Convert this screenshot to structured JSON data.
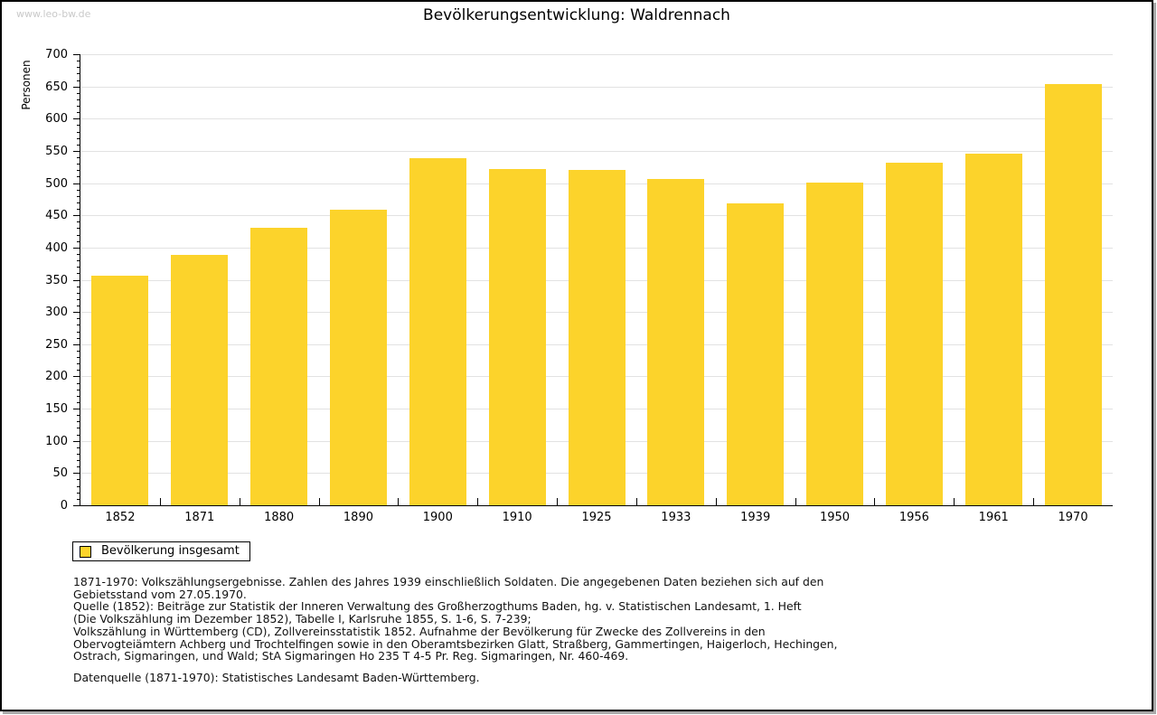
{
  "page": {
    "watermark": "www.leo-bw.de",
    "title": "Bevölkerungsentwicklung: Waldrennach"
  },
  "chart_data": {
    "type": "bar",
    "title": "Bevölkerungsentwicklung: Waldrennach",
    "ylabel": "Personen",
    "xlabel": "",
    "categories": [
      "1852",
      "1871",
      "1880",
      "1890",
      "1900",
      "1910",
      "1925",
      "1933",
      "1939",
      "1950",
      "1956",
      "1961",
      "1970"
    ],
    "values": [
      357,
      388,
      431,
      459,
      538,
      522,
      520,
      506,
      469,
      501,
      532,
      546,
      654
    ],
    "ylim": [
      0,
      700
    ],
    "ytick_step": 50,
    "yminor_step": 10,
    "grid": true,
    "bar_color": "#fcd32b",
    "legend_position": "bottom-left",
    "legend_entries": [
      "Bevölkerung insgesamt"
    ]
  },
  "legend": {
    "label": "Bevölkerung insgesamt",
    "swatch_color": "#fcd32b"
  },
  "footnotes": {
    "lines": [
      "1871-1970: Volkszählungsergebnisse. Zahlen des Jahres 1939 einschließlich Soldaten. Die angegebenen Daten beziehen sich auf den",
      "Gebietsstand vom 27.05.1970.",
      "Quelle (1852): Beiträge zur Statistik der Inneren Verwaltung des Großherzogthums Baden, hg. v. Statistischen Landesamt, 1. Heft",
      "(Die Volkszählung im Dezember 1852), Tabelle I, Karlsruhe 1855, S. 1-6, S. 7-239;",
      "Volkszählung in Württemberg (CD), Zollvereinsstatistik 1852. Aufnahme der Bevölkerung für Zwecke des Zollvereins in den",
      "Obervogteiämtern Achberg und Trochtelfingen sowie in den Oberamtsbezirken Glatt, Straßberg, Gammertingen, Haigerloch, Hechingen,",
      "Ostrach, Sigmaringen, und Wald; StA Sigmaringen Ho 235 T 4-5 Pr. Reg. Sigmaringen, Nr. 460-469."
    ],
    "datasource": "Datenquelle (1871-1970): Statistisches Landesamt Baden-Württemberg."
  }
}
